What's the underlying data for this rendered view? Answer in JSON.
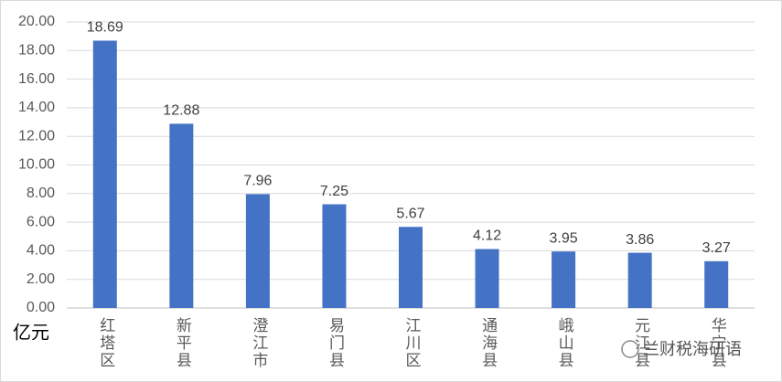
{
  "chart_data": {
    "type": "bar",
    "y_label": "亿元",
    "categories": [
      "红塔区",
      "新平县",
      "澄江市",
      "易门县",
      "江川区",
      "通海县",
      "峨山县",
      "元江县",
      "华宁县"
    ],
    "values": [
      18.69,
      12.88,
      7.96,
      7.25,
      5.67,
      4.12,
      3.95,
      3.86,
      3.27
    ],
    "color": "#4472c4",
    "ylim": [
      0,
      20
    ],
    "yticks": [
      {
        "value": 0,
        "label": "0.00"
      },
      {
        "value": 2,
        "label": "2.00"
      },
      {
        "value": 4,
        "label": "4.00"
      },
      {
        "value": 6,
        "label": "6.00"
      },
      {
        "value": 8,
        "label": "8.00"
      },
      {
        "value": 10,
        "label": "10.00"
      },
      {
        "value": 12,
        "label": "12.00"
      },
      {
        "value": 14,
        "label": "14.00"
      },
      {
        "value": 16,
        "label": "16.00"
      },
      {
        "value": 18,
        "label": "18.00"
      },
      {
        "value": 20,
        "label": "20.00"
      }
    ],
    "grid": true,
    "watermark": "兰财税海研语"
  }
}
